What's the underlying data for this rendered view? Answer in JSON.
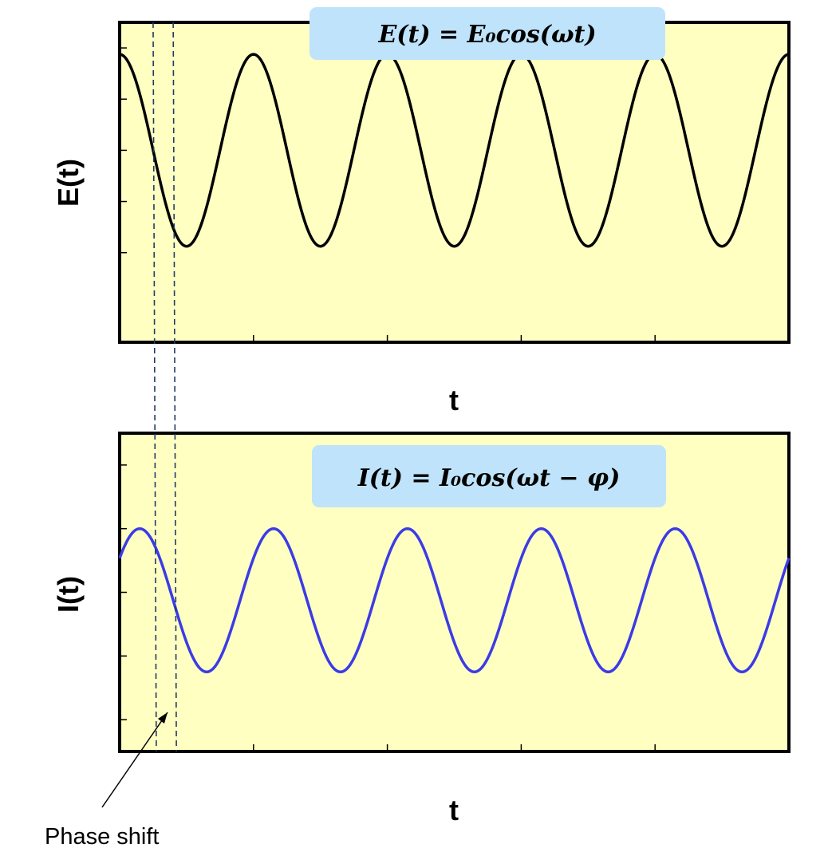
{
  "colors": {
    "plot_background": "#FFFFC2",
    "frame": "#000000",
    "e_curve": "#000000",
    "i_curve": "#3B3BE6",
    "equation_box": "#BFE3FA",
    "guide_line": "#1F3A66"
  },
  "chart_data": [
    {
      "type": "line",
      "panel": "top",
      "title": "",
      "xlabel": "t",
      "ylabel": "E(t)",
      "equation": "E(t) = E₀cos(ωt)",
      "x_range": [
        0,
        5.0
      ],
      "y_range": [
        -1.5,
        1.0
      ],
      "series": [
        {
          "name": "E(t)",
          "function": "cos",
          "amplitude": 0.75,
          "offset": 0.0,
          "period": 1.0,
          "phase_cycles": 0.0,
          "x_start": -0.25,
          "x_end": 5.0
        }
      ],
      "y_ticks": [
        0.8,
        0.4,
        0.0,
        -0.4,
        -0.8
      ],
      "x_ticks": [
        1,
        2,
        3,
        4
      ],
      "grid": false,
      "legend": "none"
    },
    {
      "type": "line",
      "panel": "bottom",
      "title": "",
      "xlabel": "t",
      "ylabel": "I(t)",
      "equation": "I(t) = I₀cos(ωt − φ)",
      "x_range": [
        0,
        5.0
      ],
      "y_range": [
        -1.0,
        1.0
      ],
      "series": [
        {
          "name": "I(t)",
          "function": "cos",
          "amplitude": 0.45,
          "offset": -0.05,
          "period": 1.0,
          "phase_cycles": 0.15,
          "x_start": 0.0,
          "x_end": 5.0
        }
      ],
      "y_ticks": [
        0.8,
        0.4,
        0.0,
        -0.4,
        -0.8
      ],
      "x_ticks": [
        1,
        2,
        3,
        4
      ],
      "grid": false,
      "legend": "none"
    }
  ],
  "guides": {
    "t_values": [
      0.25,
      0.4
    ]
  },
  "annotation": {
    "text": "Phase shift"
  }
}
